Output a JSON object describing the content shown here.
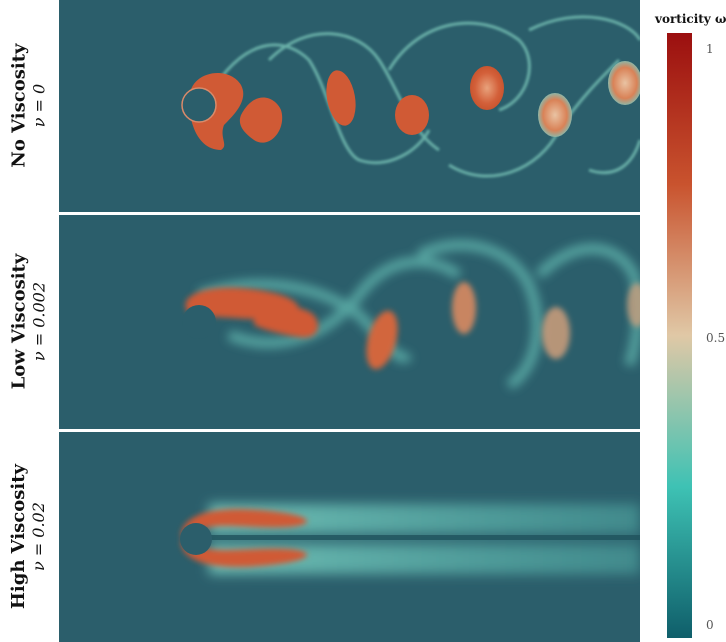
{
  "panels": [
    {
      "title": "No Viscosity",
      "param": "ν = 0"
    },
    {
      "title": "Low Viscosity",
      "param": "ν = 0.002"
    },
    {
      "title": "High Viscosity",
      "param": "ν = 0.02"
    }
  ],
  "colorbar": {
    "title": "vorticity ω",
    "ticks": [
      "1",
      "0.5",
      "0"
    ],
    "colors": [
      "#9b0f0f",
      "#c9532e",
      "#e0c8a6",
      "#3ec2b4",
      "#0f5e6a"
    ]
  },
  "colors": {
    "background_flow": "#2b5e6b",
    "vortex": "#d05a35",
    "shear": "#5fb2ab",
    "cylinder": "#2b5e6b"
  }
}
